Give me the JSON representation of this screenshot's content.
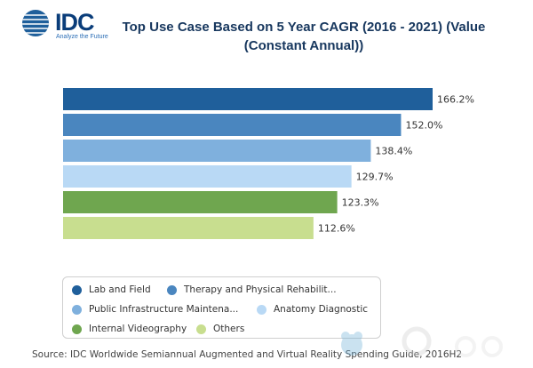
{
  "logo": {
    "name": "IDC",
    "tagline": "Analyze the Future"
  },
  "title_line1": "Top Use Case Based on 5 Year CAGR (2016 - 2021) (Value",
  "title_line2": "(Constant Annual))",
  "source": "Source: IDC Worldwide Semiannual Augmented and Virtual Reality Spending Guide, 2016H2",
  "chart_data": {
    "type": "bar",
    "orientation": "horizontal",
    "categories": [
      "Lab and Field",
      "Therapy and Physical Rehabilit...",
      "Public Infrastructure Maintena...",
      "Anatomy Diagnostic",
      "Internal Videography",
      "Others"
    ],
    "values": [
      166.2,
      152.0,
      138.4,
      129.7,
      123.3,
      112.6
    ],
    "value_labels": [
      "166.2%",
      "152.0%",
      "138.4%",
      "129.7%",
      "123.3%",
      "112.6%"
    ],
    "colors": [
      "#1f5f9b",
      "#4a86bf",
      "#7fb0dd",
      "#b9d9f5",
      "#6fa64f",
      "#c8de8f"
    ],
    "xlim": [
      0,
      166.2
    ],
    "grid": false,
    "legend_position": "bottom-left"
  }
}
